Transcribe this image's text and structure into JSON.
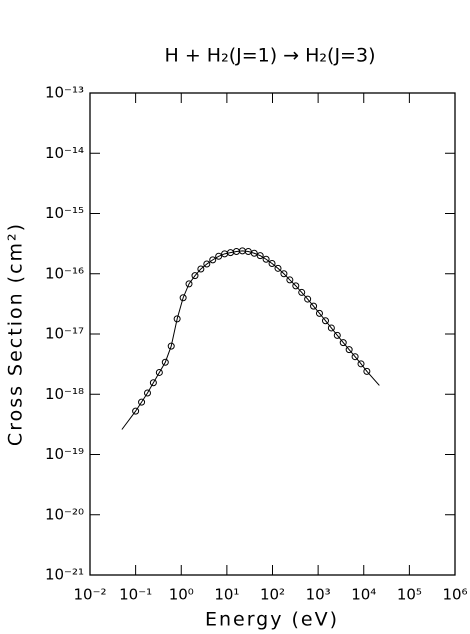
{
  "chart_data": {
    "type": "line",
    "title": "H + H₂(J=1) → H₂(J=3)",
    "xlabel": "Energy (eV)",
    "ylabel": "Cross Section (cm²)",
    "xscale": "log",
    "yscale": "log",
    "xlim": [
      0.01,
      1000000
    ],
    "ylim": [
      1e-21,
      1e-13
    ],
    "xticks": [
      {
        "value": 0.01,
        "label": "10⁻²"
      },
      {
        "value": 0.1,
        "label": "10⁻¹"
      },
      {
        "value": 1,
        "label": "10⁰"
      },
      {
        "value": 10,
        "label": "10¹"
      },
      {
        "value": 100,
        "label": "10²"
      },
      {
        "value": 1000,
        "label": "10³"
      },
      {
        "value": 10000,
        "label": "10⁴"
      },
      {
        "value": 100000,
        "label": "10⁵"
      },
      {
        "value": 1000000,
        "label": "10⁶"
      }
    ],
    "yticks": [
      {
        "value": 1e-21,
        "label": "10⁻²¹"
      },
      {
        "value": 1e-20,
        "label": "10⁻²⁰"
      },
      {
        "value": 1e-19,
        "label": "10⁻¹⁹"
      },
      {
        "value": 1e-18,
        "label": "10⁻¹⁸"
      },
      {
        "value": 1e-17,
        "label": "10⁻¹⁷"
      },
      {
        "value": 1e-16,
        "label": "10⁻¹⁶"
      },
      {
        "value": 1e-15,
        "label": "10⁻¹⁵"
      },
      {
        "value": 1e-14,
        "label": "10⁻¹⁴"
      },
      {
        "value": 1e-13,
        "label": "10⁻¹³"
      }
    ],
    "series": [
      {
        "color": "#000000",
        "style": "markers",
        "x": [
          0.1,
          0.135,
          0.182,
          0.245,
          0.331,
          0.447,
          0.603,
          0.813,
          1.1,
          1.48,
          2.0,
          2.69,
          3.63,
          4.9,
          6.61,
          8.91,
          12.0,
          16.2,
          21.9,
          29.5,
          39.8,
          53.7,
          72.4,
          97.7,
          132,
          178,
          240,
          324,
          437,
          589,
          794,
          1070,
          1450,
          1950,
          2630,
          3550,
          4790,
          6460,
          8710,
          11700
        ],
        "values": [
          5.25e-19,
          7.4e-19,
          1.05e-18,
          1.55e-18,
          2.3e-18,
          3.4e-18,
          6.3e-18,
          1.78e-17,
          4e-17,
          6.8e-17,
          9.3e-17,
          1.2e-16,
          1.45e-16,
          1.7e-16,
          1.95e-16,
          2.14e-16,
          2.24e-16,
          2.34e-16,
          2.4e-16,
          2.34e-16,
          2.19e-16,
          2e-16,
          1.74e-16,
          1.48e-16,
          1.23e-16,
          1e-16,
          7.9e-17,
          6.3e-17,
          4.9e-17,
          3.8e-17,
          2.9e-17,
          2.2e-17,
          1.66e-17,
          1.26e-17,
          9.5e-18,
          7.2e-18,
          5.5e-18,
          4.2e-18,
          3.2e-18,
          2.4e-18
        ]
      },
      {
        "color": "#000000",
        "style": "line",
        "x": [
          0.05,
          0.1,
          0.135,
          0.182,
          0.245,
          0.331,
          0.447,
          0.603,
          0.813,
          1.1,
          1.48,
          2.0,
          2.69,
          3.63,
          4.9,
          6.61,
          8.91,
          12.0,
          16.2,
          21.9,
          29.5,
          39.8,
          53.7,
          72.4,
          97.7,
          132,
          178,
          240,
          324,
          437,
          589,
          794,
          1070,
          1450,
          1950,
          2630,
          3550,
          4790,
          6460,
          8710,
          11700,
          22000
        ],
        "values": [
          2.6e-19,
          5.25e-19,
          7.4e-19,
          1.05e-18,
          1.55e-18,
          2.3e-18,
          3.4e-18,
          6.3e-18,
          1.78e-17,
          4e-17,
          6.8e-17,
          9.3e-17,
          1.2e-16,
          1.45e-16,
          1.7e-16,
          1.95e-16,
          2.14e-16,
          2.24e-16,
          2.34e-16,
          2.4e-16,
          2.34e-16,
          2.19e-16,
          2e-16,
          1.74e-16,
          1.48e-16,
          1.23e-16,
          1e-16,
          7.9e-17,
          6.3e-17,
          4.9e-17,
          3.8e-17,
          2.9e-17,
          2.2e-17,
          1.66e-17,
          1.26e-17,
          9.5e-18,
          7.2e-18,
          5.5e-18,
          4.2e-18,
          3.2e-18,
          2.4e-18,
          1.4e-18
        ]
      }
    ]
  }
}
